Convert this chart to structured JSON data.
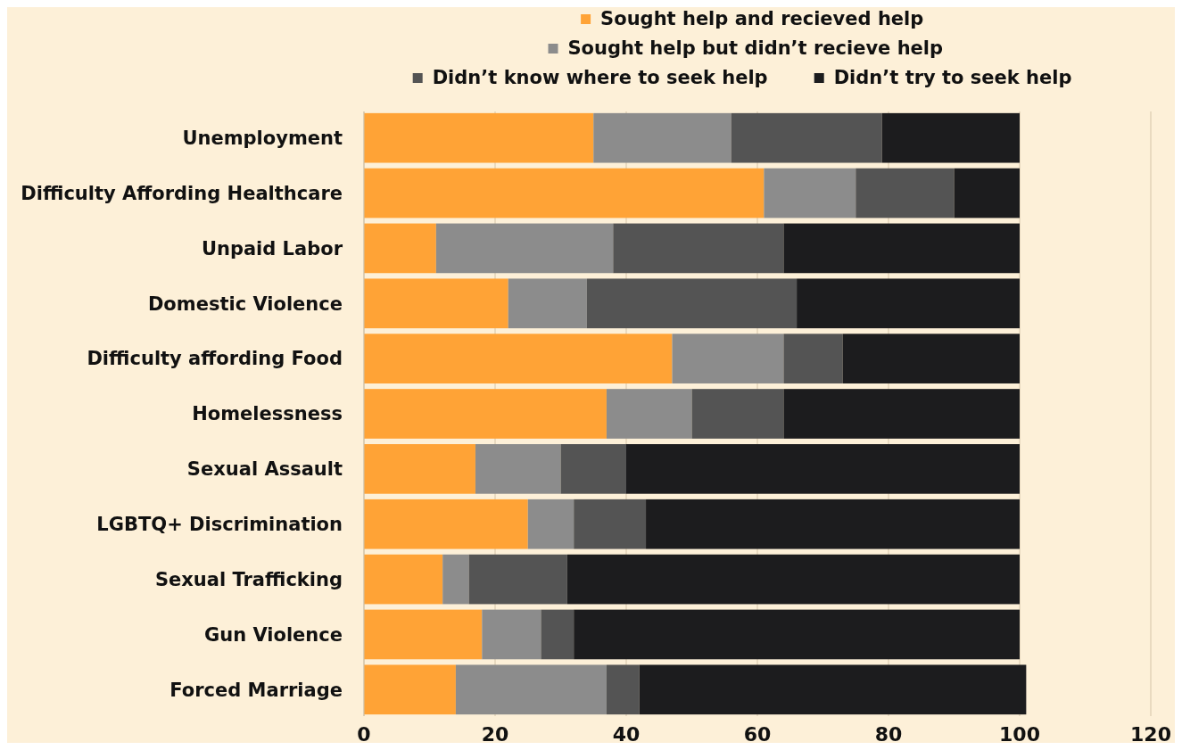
{
  "chart_data": {
    "type": "bar",
    "orientation": "horizontal",
    "stacked": true,
    "categories": [
      "Unemployment",
      "Difficulty Affording Healthcare",
      "Unpaid Labor",
      "Domestic Violence",
      "Difficulty affording Food",
      "Homelessness",
      "Sexual Assault",
      "LGBTQ+ Discrimination",
      "Sexual Trafficking",
      "Gun Violence",
      "Forced Marriage"
    ],
    "series": [
      {
        "name": "Sought help and recieved help",
        "color": "#ffa336",
        "values": [
          35,
          61,
          11,
          22,
          47,
          37,
          17,
          25,
          12,
          18,
          14
        ]
      },
      {
        "name": "Sought help but didn’t recieve help",
        "color": "#8c8c8c",
        "values": [
          21,
          14,
          27,
          12,
          17,
          13,
          13,
          7,
          4,
          9,
          23
        ]
      },
      {
        "name": "Didn’t know where to seek help",
        "color": "#545454",
        "values": [
          23,
          15,
          26,
          32,
          9,
          14,
          10,
          11,
          15,
          5,
          5
        ]
      },
      {
        "name": "Didn’t try to seek help",
        "color": "#1c1c1e",
        "values": [
          21,
          10,
          36,
          34,
          27,
          36,
          60,
          57,
          69,
          68,
          59
        ]
      }
    ],
    "xlim": [
      0,
      120
    ],
    "xticks": [
      0,
      20,
      40,
      60,
      80,
      100,
      120
    ],
    "grid": "x",
    "legend": "top"
  }
}
